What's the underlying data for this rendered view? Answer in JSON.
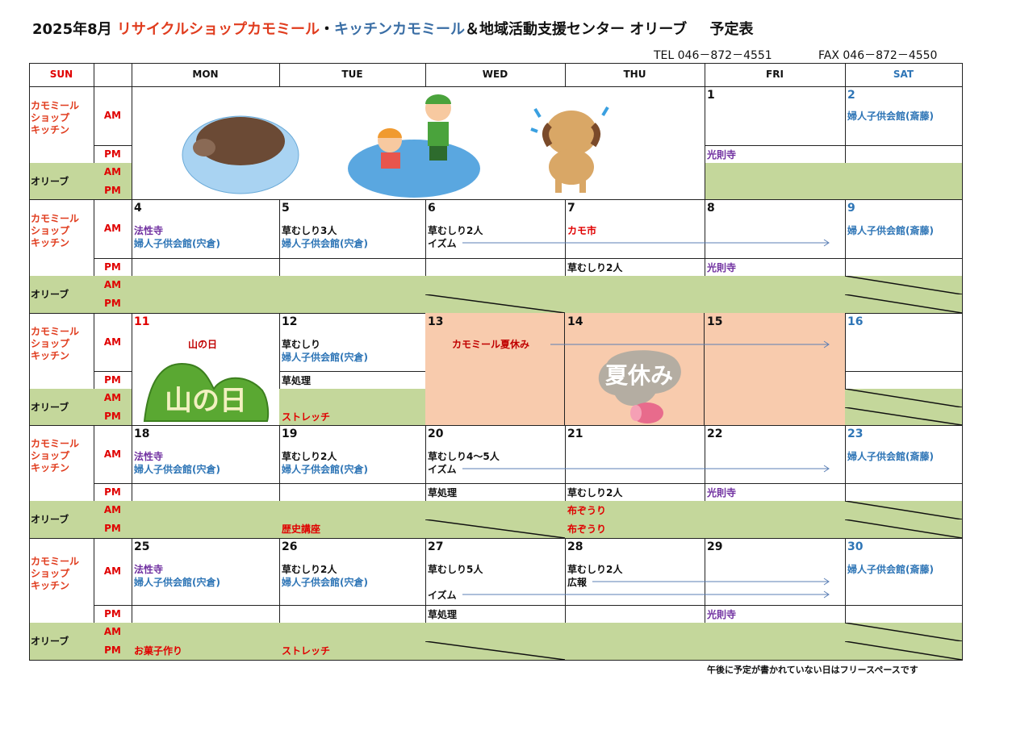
{
  "title": {
    "month": "2025年8月",
    "shop": "リサイクルショップカモミール",
    "sep": "・",
    "kitchen": "キッチンカモミール",
    "rest": "＆地域活動支援センター オリーブ",
    "suffix": "予定表"
  },
  "contact": {
    "tel": "TEL  046－872－4551",
    "fax": "FAX  046－872－4550"
  },
  "colors": {
    "accent_red": "#e03c1e",
    "kitchen_blue": "#3a6ea5",
    "green": "#c4d79b",
    "peach": "#f8cbad",
    "purple": "#7030a0",
    "blue": "#2e75b6",
    "red": "#e00000"
  },
  "headers": [
    "SUN",
    "",
    "MON",
    "TUE",
    "WED",
    "THU",
    "FRI",
    "SAT"
  ],
  "row_labels": {
    "kamomile": [
      "カモミール",
      "ショップ",
      "キッチン"
    ],
    "olive": "オリーブ",
    "am": "AM",
    "pm": "PM"
  },
  "weeks": [
    {
      "days": [
        null,
        null,
        null,
        null,
        {
          "date": "1",
          "am": [],
          "pm": [
            {
              "text": "光則寺",
              "color": "purple"
            }
          ],
          "oam": [],
          "opm": []
        },
        {
          "date": "2",
          "date_color": "blue",
          "am": [
            {
              "text": "婦人子供会館(斎藤)",
              "color": "blue"
            }
          ],
          "pm": [],
          "oam": [],
          "opm": []
        }
      ],
      "image_span": "summer-illustrations"
    },
    {
      "days": [
        {
          "date": "4",
          "am": [
            {
              "text": "法性寺",
              "color": "purple"
            },
            {
              "text": "婦人子供会館(宍倉)",
              "color": "blue"
            }
          ],
          "pm": [],
          "oam": [],
          "opm": []
        },
        {
          "date": "5",
          "am": [
            {
              "text": "草むしり3人"
            },
            {
              "text": "婦人子供会館(宍倉)",
              "color": "blue"
            }
          ],
          "pm": [],
          "oam": [],
          "opm": []
        },
        {
          "date": "6",
          "am": [
            {
              "text": "草むしり2人"
            },
            {
              "text": "イズム",
              "arrow": true
            }
          ],
          "pm": [],
          "oam": [],
          "opm": [],
          "opm_slash": true
        },
        {
          "date": "7",
          "am": [
            {
              "text": "カモ市",
              "color": "red"
            }
          ],
          "pm": [
            {
              "text": "草むしり2人"
            }
          ],
          "oam": [],
          "opm": []
        },
        {
          "date": "8",
          "am": [],
          "pm": [
            {
              "text": "光則寺",
              "color": "purple"
            }
          ],
          "oam": [],
          "opm": []
        },
        {
          "date": "9",
          "date_color": "blue",
          "am": [
            {
              "text": "婦人子供会館(斎藤)",
              "color": "blue"
            }
          ],
          "pm": [],
          "oam": [],
          "opm": [],
          "oam_slash": true,
          "opm_slash": true
        }
      ]
    },
    {
      "days": [
        {
          "date": "11",
          "date_color": "red",
          "holiday": "山の日",
          "holiday_image_text": "山の日"
        },
        {
          "date": "12",
          "am": [
            {
              "text": "草むしり"
            },
            {
              "text": "婦人子供会館(宍倉)",
              "color": "blue"
            }
          ],
          "pm": [
            {
              "text": "草処理"
            }
          ],
          "oam": [],
          "opm": [
            {
              "text": "ストレッチ",
              "color": "red"
            }
          ]
        },
        {
          "date": "13",
          "closed": true,
          "closed_text": "カモミール夏休み"
        },
        {
          "date": "14",
          "closed": true,
          "closed_image_text": "夏休み"
        },
        {
          "date": "15",
          "closed": true
        },
        {
          "date": "16",
          "date_color": "blue",
          "am": [],
          "pm": [],
          "oam": [],
          "opm": [],
          "oam_slash": true,
          "opm_slash": true
        }
      ]
    },
    {
      "days": [
        {
          "date": "18",
          "am": [
            {
              "text": "法性寺",
              "color": "purple"
            },
            {
              "text": "婦人子供会館(宍倉)",
              "color": "blue"
            }
          ],
          "pm": [],
          "oam": [],
          "opm": []
        },
        {
          "date": "19",
          "am": [
            {
              "text": "草むしり2人"
            },
            {
              "text": "婦人子供会館(宍倉)",
              "color": "blue"
            }
          ],
          "pm": [],
          "oam": [],
          "opm": [
            {
              "text": "歴史講座",
              "color": "red"
            }
          ]
        },
        {
          "date": "20",
          "am": [
            {
              "text": "草むしり4～5人"
            },
            {
              "text": "イズム",
              "arrow": true
            }
          ],
          "pm": [
            {
              "text": "草処理"
            }
          ],
          "oam": [],
          "opm": [],
          "opm_slash": true
        },
        {
          "date": "21",
          "am": [],
          "pm": [
            {
              "text": "草むしり2人"
            }
          ],
          "oam": [
            {
              "text": "布ぞうり",
              "color": "red"
            }
          ],
          "opm": [
            {
              "text": "布ぞうり",
              "color": "red"
            }
          ]
        },
        {
          "date": "22",
          "am": [],
          "pm": [
            {
              "text": "光則寺",
              "color": "purple"
            }
          ],
          "oam": [],
          "opm": []
        },
        {
          "date": "23",
          "date_color": "blue",
          "am": [
            {
              "text": "婦人子供会館(斎藤)",
              "color": "blue"
            }
          ],
          "pm": [],
          "oam": [],
          "opm": [],
          "oam_slash": true,
          "opm_slash": true
        }
      ]
    },
    {
      "days": [
        {
          "date": "25",
          "am": [
            {
              "text": "法性寺",
              "color": "purple"
            },
            {
              "text": "婦人子供会館(宍倉)",
              "color": "blue"
            }
          ],
          "pm": [],
          "oam": [],
          "opm": [
            {
              "text": "お菓子作り",
              "color": "red"
            }
          ]
        },
        {
          "date": "26",
          "am": [
            {
              "text": "草むしり2人"
            },
            {
              "text": "婦人子供会館(宍倉)",
              "color": "blue"
            }
          ],
          "pm": [],
          "oam": [],
          "opm": [
            {
              "text": "ストレッチ",
              "color": "red"
            }
          ]
        },
        {
          "date": "27",
          "am": [
            {
              "text": "草むしり5人"
            },
            {
              "text": ""
            },
            {
              "text": "イズム",
              "arrow": true
            }
          ],
          "pm": [
            {
              "text": "草処理"
            }
          ],
          "oam": [],
          "opm": [],
          "opm_slash": true
        },
        {
          "date": "28",
          "am": [
            {
              "text": "草むしり2人"
            },
            {
              "text": "広報",
              "arrow": true
            }
          ],
          "pm": [],
          "oam": [],
          "opm": []
        },
        {
          "date": "29",
          "am": [],
          "pm": [
            {
              "text": "光則寺",
              "color": "purple"
            }
          ],
          "oam": [],
          "opm": []
        },
        {
          "date": "30",
          "date_color": "blue",
          "am": [
            {
              "text": "婦人子供会館(斎藤)",
              "color": "blue"
            }
          ],
          "pm": [],
          "oam": [],
          "opm": [],
          "oam_slash": true,
          "opm_slash": true
        }
      ]
    }
  ],
  "footnote": "午後に予定が書かれていない日はフリースペースです"
}
